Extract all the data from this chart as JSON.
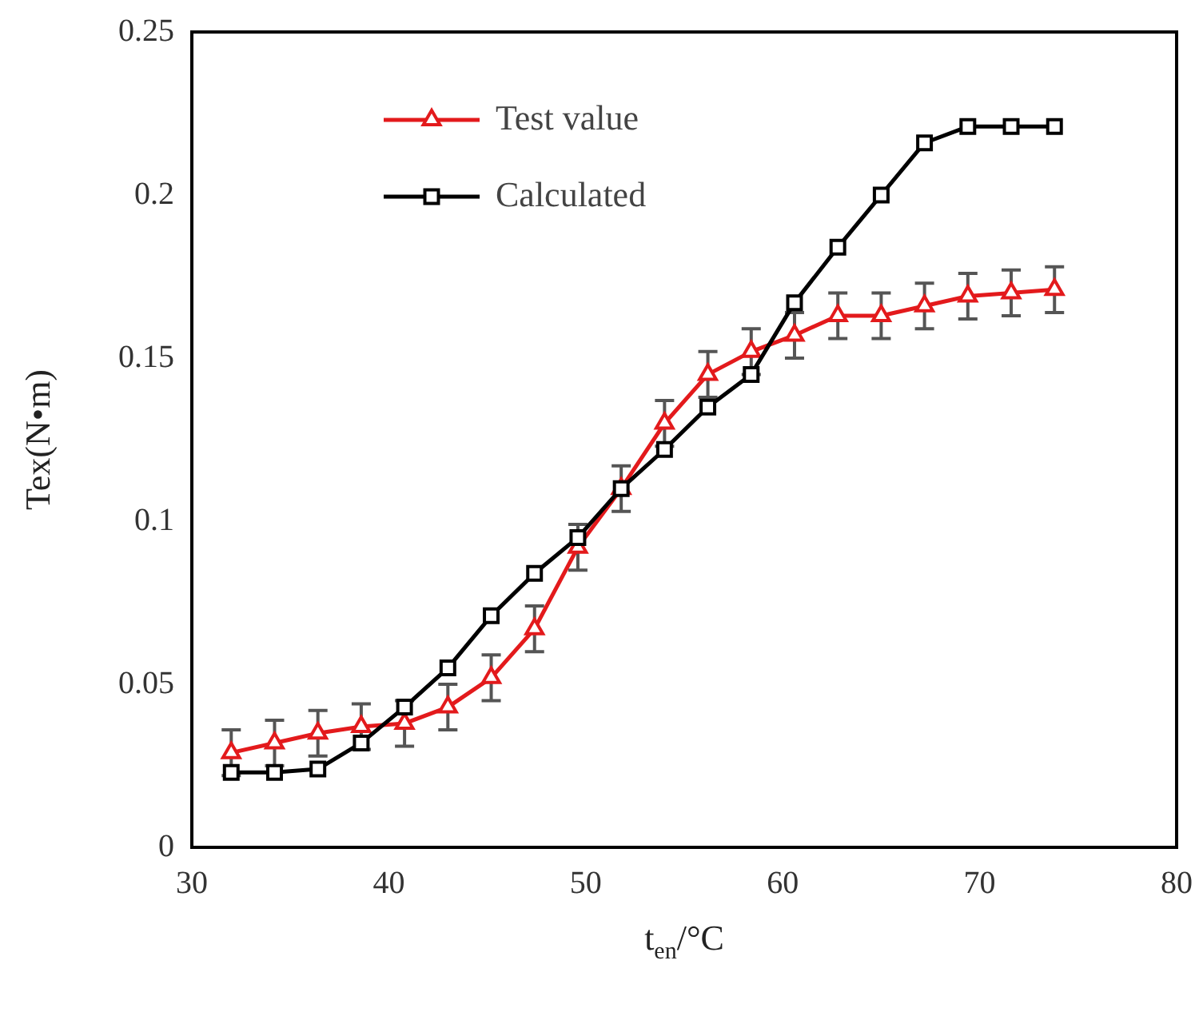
{
  "chart_data": {
    "type": "line",
    "xlabel": "t$_{en}$/°C",
    "ylabel": "Tex(N•m)",
    "x": [
      32,
      34.2,
      36.4,
      38.6,
      40.8,
      43,
      45.2,
      47.4,
      49.6,
      51.8,
      54,
      56.2,
      58.4,
      60.6,
      62.8,
      65,
      67.2,
      69.4,
      71.6,
      73.8
    ],
    "series": [
      {
        "name": "Test value",
        "color": "#e31a1c",
        "marker": "triangle",
        "values": [
          0.029,
          0.032,
          0.035,
          0.037,
          0.038,
          0.043,
          0.052,
          0.067,
          0.092,
          0.11,
          0.13,
          0.145,
          0.152,
          0.157,
          0.163,
          0.163,
          0.166,
          0.169,
          0.17,
          0.171
        ],
        "errors": [
          0.007,
          0.007,
          0.007,
          0.007,
          0.007,
          0.007,
          0.007,
          0.007,
          0.007,
          0.007,
          0.007,
          0.007,
          0.007,
          0.007,
          0.007,
          0.007,
          0.007,
          0.007,
          0.007,
          0.007
        ]
      },
      {
        "name": "Calculated",
        "color": "#000000",
        "marker": "square",
        "values": [
          0.023,
          0.023,
          0.024,
          0.032,
          0.043,
          0.055,
          0.071,
          0.084,
          0.095,
          0.11,
          0.122,
          0.135,
          0.145,
          0.167,
          0.184,
          0.2,
          0.216,
          0.221,
          0.221,
          0.221
        ]
      }
    ],
    "xlim": [
      30,
      80
    ],
    "xticks": [
      30,
      40,
      50,
      60,
      70,
      80
    ],
    "ylim": [
      0,
      0.25
    ],
    "yticks": [
      0,
      0.05,
      0.1,
      0.15,
      0.2,
      0.25
    ],
    "grid": false,
    "legend": "top left",
    "line_style": "solid"
  }
}
